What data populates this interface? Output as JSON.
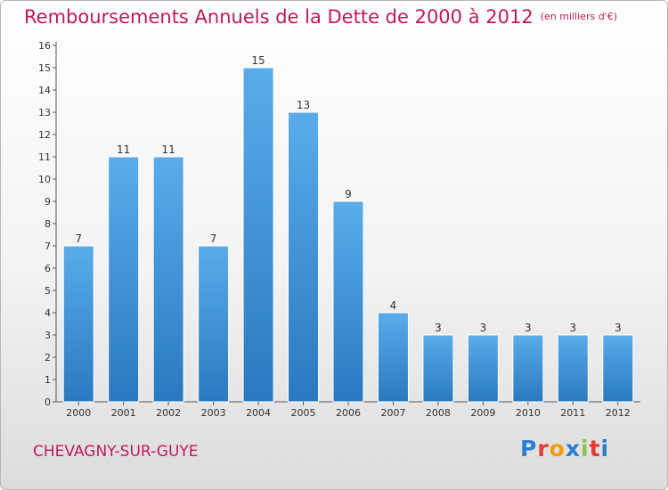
{
  "header": {
    "title": "Remboursements Annuels de la Dette de 2000 à 2012",
    "unit_note": "(en milliers d'€)"
  },
  "footer": {
    "city": "CHEVAGNY-SUR-GUYE",
    "logo_letters": [
      "P",
      "r",
      "o",
      "x",
      "i",
      "t",
      "i"
    ]
  },
  "colors": {
    "bar": "#3c8fd6",
    "title": "#c2185b"
  },
  "chart_data": {
    "type": "bar",
    "title": "Remboursements Annuels de la Dette de 2000 à 2012",
    "subtitle": "(en milliers d'€)",
    "xlabel": "",
    "ylabel": "",
    "categories": [
      "2000",
      "2001",
      "2002",
      "2003",
      "2004",
      "2005",
      "2006",
      "2007",
      "2008",
      "2009",
      "2010",
      "2011",
      "2012"
    ],
    "values": [
      7,
      11,
      11,
      7,
      15,
      13,
      9,
      4,
      3,
      3,
      3,
      3,
      3
    ],
    "ylim": [
      0,
      16
    ],
    "yticks": [
      0,
      1,
      2,
      3,
      4,
      5,
      6,
      7,
      8,
      9,
      10,
      11,
      12,
      13,
      14,
      15,
      16
    ],
    "grid": false,
    "legend": "none"
  }
}
